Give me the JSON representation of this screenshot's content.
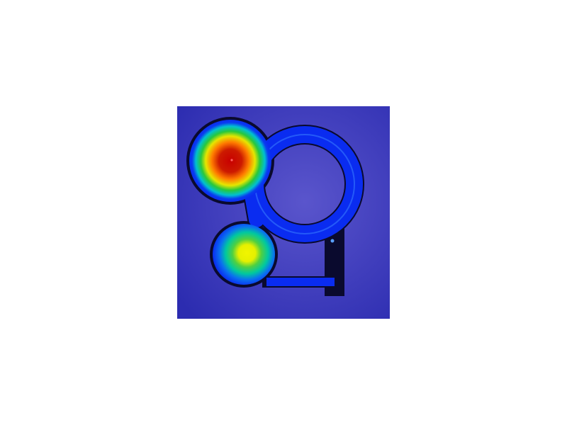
{
  "image": {
    "kind": "heatmap-visualization",
    "colormap": "jet",
    "colors": {
      "page_background": "#ffffff",
      "field_background_center": "#5a55cc",
      "field_background_edge": "#2c2cb0",
      "channel_outline": "#0a0a2e",
      "channel_fill": "#0a2cf0",
      "channel_highlight": "#3b82ff",
      "low": "#0a2cf0",
      "mid_low": "#00c8d2",
      "mid": "#28c83c",
      "mid_high": "#e6f000",
      "high": "#ff7a00",
      "peak": "#c80000"
    },
    "hot_spots": [
      {
        "name": "upper-left-peak",
        "level": 1.0
      },
      {
        "name": "lower-left-peak",
        "level": 0.72
      }
    ],
    "structures": [
      "large-ring-channel",
      "vertical-stem-channel",
      "bottom-horizontal-channel",
      "connector-channel"
    ]
  }
}
